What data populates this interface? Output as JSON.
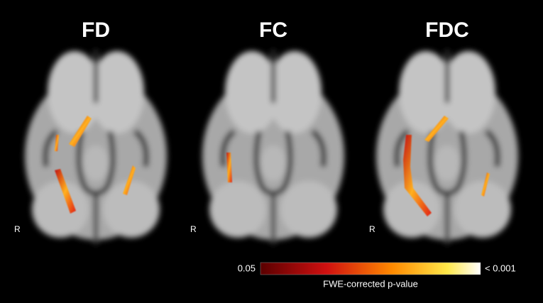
{
  "panels": [
    {
      "title": "FD",
      "side_label": "R"
    },
    {
      "title": "FC",
      "side_label": "R"
    },
    {
      "title": "FDC",
      "side_label": "R"
    }
  ],
  "colorbar": {
    "min_label": "0.05",
    "max_label": "< 0.001",
    "label": "FWE-corrected p-value"
  }
}
